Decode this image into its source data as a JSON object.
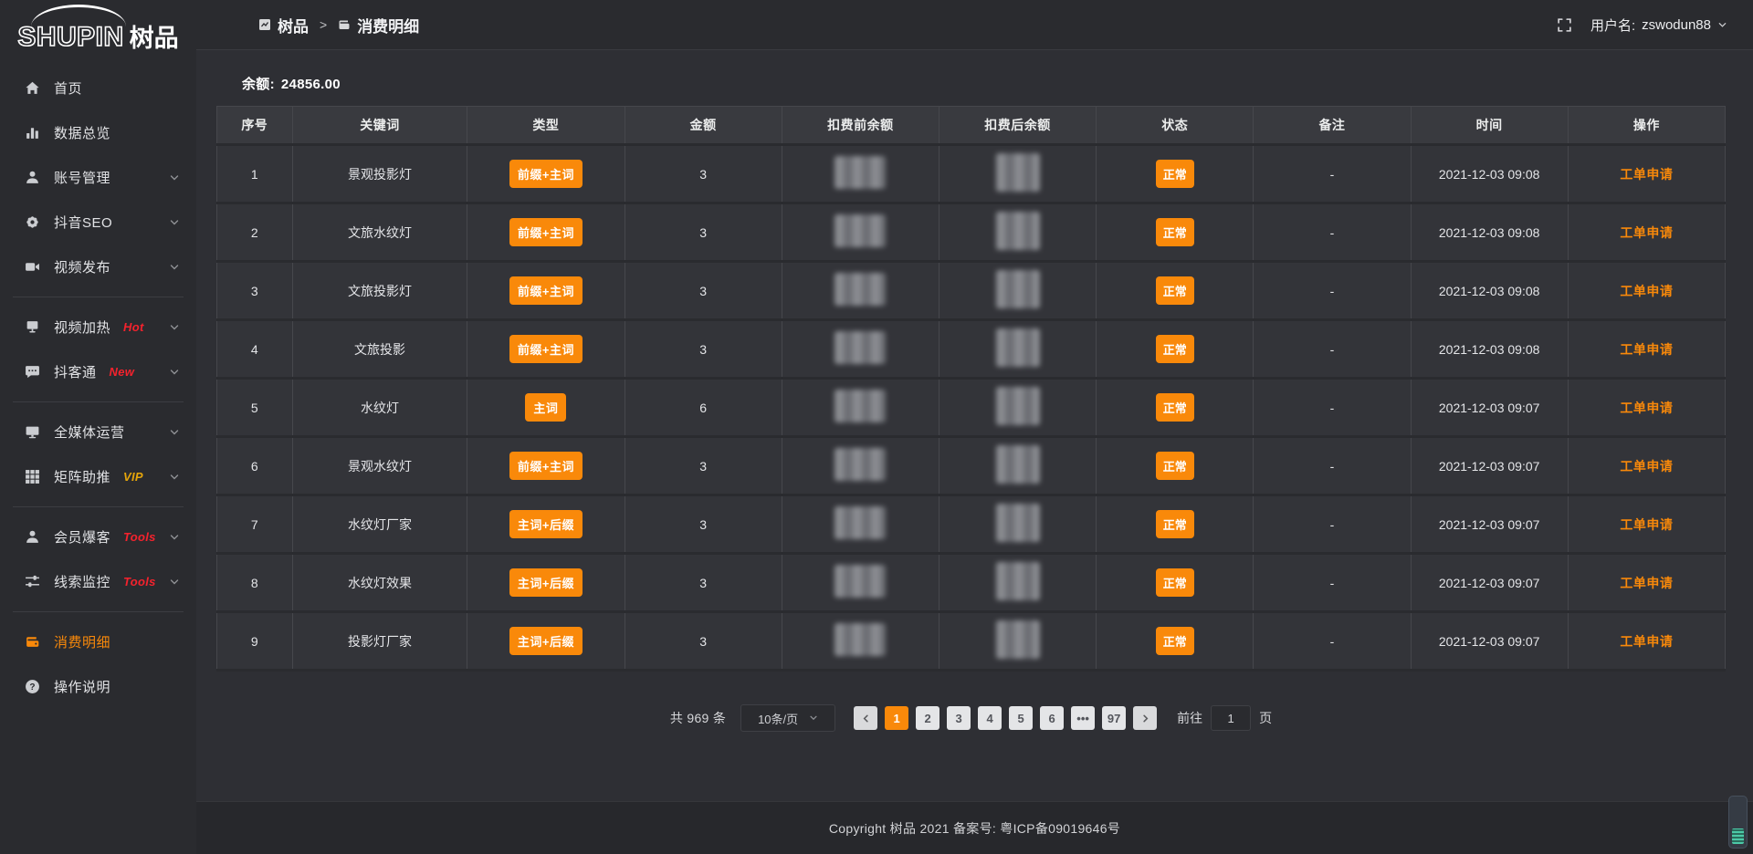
{
  "colors": {
    "accent": "#f9890a"
  },
  "brand": {
    "logo_en": "SHUPIN",
    "logo_cn": "树品"
  },
  "topbar": {
    "breadcrumb_root": "树品",
    "breadcrumb_separator": ">",
    "breadcrumb_current": "消费明细",
    "username_label": "用户名:",
    "username": "zswodun88"
  },
  "sidebar": {
    "items": [
      {
        "label": "首页",
        "icon": "home-icon"
      },
      {
        "label": "数据总览",
        "icon": "bar-chart-icon"
      },
      {
        "label": "账号管理",
        "icon": "user-icon",
        "chevron": true
      },
      {
        "label": "抖音SEO",
        "icon": "gear-icon",
        "chevron": true
      },
      {
        "label": "视频发布",
        "icon": "video-icon",
        "chevron": true
      },
      {
        "divider": true
      },
      {
        "label": "视频加热",
        "icon": "screen-icon",
        "tag": "Hot",
        "tag_color": "#f5222d",
        "chevron": true
      },
      {
        "label": "抖客通",
        "icon": "chat-icon",
        "tag": "New",
        "tag_color": "#f5222d",
        "chevron": true
      },
      {
        "divider": true
      },
      {
        "label": "全媒体运营",
        "icon": "monitor-icon",
        "chevron": true
      },
      {
        "label": "矩阵助推",
        "icon": "grid-icon",
        "tag": "VIP",
        "tag_color": "#e5a50a",
        "chevron": true
      },
      {
        "divider": true
      },
      {
        "label": "会员爆客",
        "icon": "member-icon",
        "tag": "Tools",
        "tag_color": "#f5222d",
        "chevron": true
      },
      {
        "label": "线索监控",
        "icon": "sliders-icon",
        "tag": "Tools",
        "tag_color": "#f5222d",
        "chevron": true
      },
      {
        "divider": true
      },
      {
        "label": "消费明细",
        "icon": "wallet-icon",
        "active": true
      },
      {
        "label": "操作说明",
        "icon": "question-icon"
      }
    ]
  },
  "main": {
    "balance_label": "余额:",
    "balance_value": "24856.00",
    "table": {
      "columns": [
        {
          "label": "序号"
        },
        {
          "label": "关键词"
        },
        {
          "label": "类型"
        },
        {
          "label": "金额"
        },
        {
          "label": "扣费前余额"
        },
        {
          "label": "扣费后余额"
        },
        {
          "label": "状态"
        },
        {
          "label": "备注"
        },
        {
          "label": "时间"
        },
        {
          "label": "操作"
        }
      ],
      "rows": [
        {
          "index": "1",
          "keyword": "景观投影灯",
          "type": "前缀+主词",
          "amount": "3",
          "status": "正常",
          "note": "-",
          "time": "2021-12-03 09:08",
          "action": "工单申请"
        },
        {
          "index": "2",
          "keyword": "文旅水纹灯",
          "type": "前缀+主词",
          "amount": "3",
          "status": "正常",
          "note": "-",
          "time": "2021-12-03 09:08",
          "action": "工单申请"
        },
        {
          "index": "3",
          "keyword": "文旅投影灯",
          "type": "前缀+主词",
          "amount": "3",
          "status": "正常",
          "note": "-",
          "time": "2021-12-03 09:08",
          "action": "工单申请"
        },
        {
          "index": "4",
          "keyword": "文旅投影",
          "type": "前缀+主词",
          "amount": "3",
          "status": "正常",
          "note": "-",
          "time": "2021-12-03 09:08",
          "action": "工单申请"
        },
        {
          "index": "5",
          "keyword": "水纹灯",
          "type": "主词",
          "amount": "6",
          "status": "正常",
          "note": "-",
          "time": "2021-12-03 09:07",
          "action": "工单申请"
        },
        {
          "index": "6",
          "keyword": "景观水纹灯",
          "type": "前缀+主词",
          "amount": "3",
          "status": "正常",
          "note": "-",
          "time": "2021-12-03 09:07",
          "action": "工单申请"
        },
        {
          "index": "7",
          "keyword": "水纹灯厂家",
          "type": "主词+后缀",
          "amount": "3",
          "status": "正常",
          "note": "-",
          "time": "2021-12-03 09:07",
          "action": "工单申请"
        },
        {
          "index": "8",
          "keyword": "水纹灯效果",
          "type": "主词+后缀",
          "amount": "3",
          "status": "正常",
          "note": "-",
          "time": "2021-12-03 09:07",
          "action": "工单申请"
        },
        {
          "index": "9",
          "keyword": "投影灯厂家",
          "type": "主词+后缀",
          "amount": "3",
          "status": "正常",
          "note": "-",
          "time": "2021-12-03 09:07",
          "action": "工单申请"
        }
      ]
    },
    "pagination": {
      "total_text": "共 969 条",
      "page_size": "10条/页",
      "pages": [
        {
          "label": "1",
          "active": true
        },
        {
          "label": "2"
        },
        {
          "label": "3"
        },
        {
          "label": "4"
        },
        {
          "label": "5"
        },
        {
          "label": "6"
        },
        {
          "label": "•••"
        },
        {
          "label": "97"
        }
      ],
      "goto_label": "前往",
      "goto_value": "1",
      "goto_suffix": "页"
    }
  },
  "footer": {
    "copyright": "Copyright 树品 2021 备案号: 粤ICP备09019646号"
  }
}
